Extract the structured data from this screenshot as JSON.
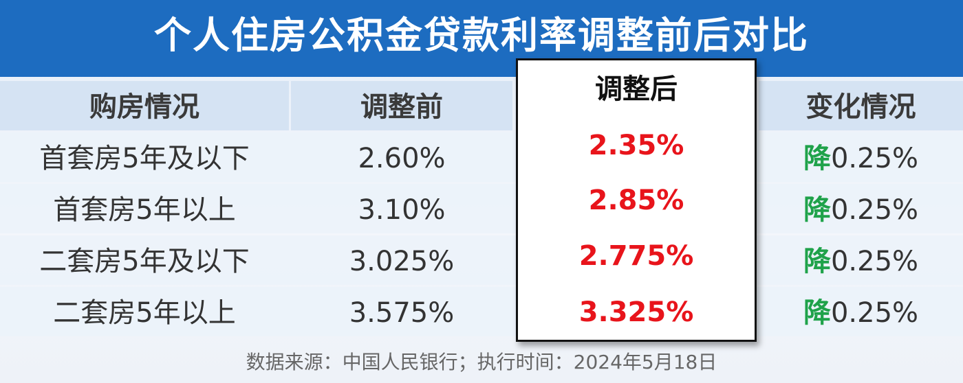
{
  "title": "个人住房公积金贷款利率调整前后对比",
  "table": {
    "headers": [
      "购房情况",
      "调整前",
      "调整后",
      "变化情况"
    ],
    "rows": [
      {
        "condition": "首套房5年及以下",
        "before": "2.60%",
        "after": "2.35%",
        "direction": "降",
        "change": "0.25%"
      },
      {
        "condition": "首套房5年以上",
        "before": "3.10%",
        "after": "2.85%",
        "direction": "降",
        "change": "0.25%"
      },
      {
        "condition": "二套房5年及以下",
        "before": "3.025%",
        "after": "2.775%",
        "direction": "降",
        "change": "0.25%"
      },
      {
        "condition": "二套房5年以上",
        "before": "3.575%",
        "after": "3.325%",
        "direction": "降",
        "change": "0.25%"
      }
    ]
  },
  "footer": "数据来源：中国人民银行；执行时间：2024年5月18日"
}
